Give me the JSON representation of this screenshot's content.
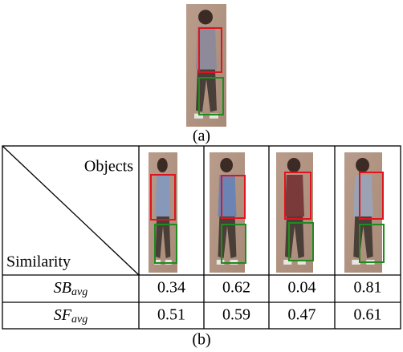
{
  "figure_a": {
    "caption": "(a)"
  },
  "table": {
    "corner_top": "Objects",
    "corner_bottom": "Similarity",
    "rows": [
      {
        "label": {
          "main": "SB",
          "sub": "avg"
        },
        "values": [
          0.34,
          0.62,
          0.04,
          0.81
        ]
      },
      {
        "label": {
          "main": "SF",
          "sub": "avg"
        },
        "values": [
          0.51,
          0.59,
          0.47,
          0.61
        ]
      }
    ]
  },
  "figure_b": {
    "caption": "(b)"
  }
}
